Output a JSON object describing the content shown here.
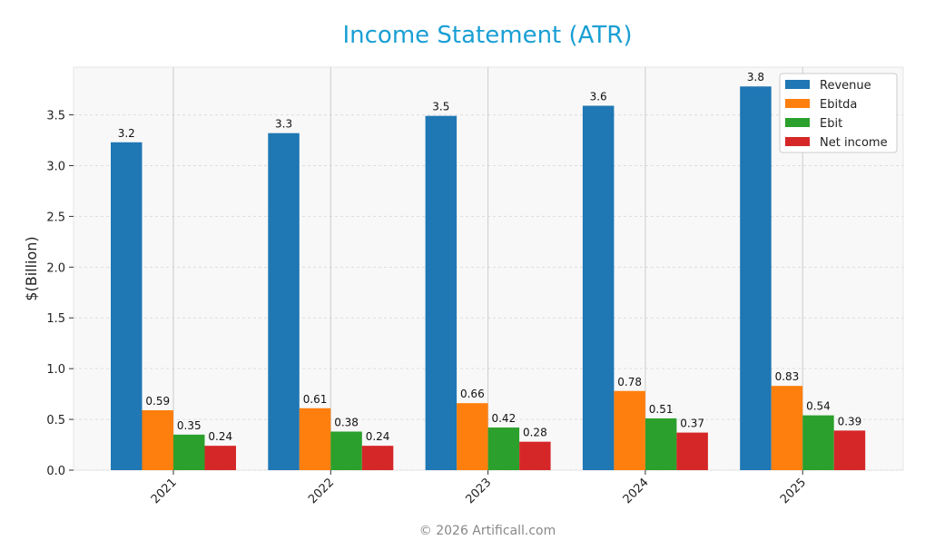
{
  "chart_data": {
    "type": "bar",
    "title": "Income Statement (ATR)",
    "xlabel": "",
    "ylabel": "$(Billion)",
    "ylim": [
      0,
      3.97
    ],
    "yticks": [
      0.0,
      0.5,
      1.0,
      1.5,
      2.0,
      2.5,
      3.0,
      3.5
    ],
    "ytick_labels": [
      "0.0",
      "0.5",
      "1.0",
      "1.5",
      "2.0",
      "2.5",
      "3.0",
      "3.5"
    ],
    "categories": [
      "2021",
      "2022",
      "2023",
      "2024",
      "2025"
    ],
    "grid": true,
    "legend_position": "top-right",
    "series": [
      {
        "name": "Revenue",
        "color": "#1f77b4",
        "values": [
          3.23,
          3.32,
          3.49,
          3.59,
          3.78
        ],
        "labels": [
          "3.2",
          "3.3",
          "3.5",
          "3.6",
          "3.8"
        ]
      },
      {
        "name": "Ebitda",
        "color": "#ff7f0e",
        "values": [
          0.59,
          0.61,
          0.66,
          0.78,
          0.83
        ],
        "labels": [
          "0.59",
          "0.61",
          "0.66",
          "0.78",
          "0.83"
        ]
      },
      {
        "name": "Ebit",
        "color": "#2ca02c",
        "values": [
          0.35,
          0.38,
          0.42,
          0.51,
          0.54
        ],
        "labels": [
          "0.35",
          "0.38",
          "0.42",
          "0.51",
          "0.54"
        ]
      },
      {
        "name": "Net income",
        "color": "#d62728",
        "values": [
          0.24,
          0.24,
          0.28,
          0.37,
          0.39
        ],
        "labels": [
          "0.24",
          "0.24",
          "0.28",
          "0.37",
          "0.39"
        ]
      }
    ],
    "title_color": "#1a9fd4"
  },
  "footer": "© 2026 Artificall.com"
}
